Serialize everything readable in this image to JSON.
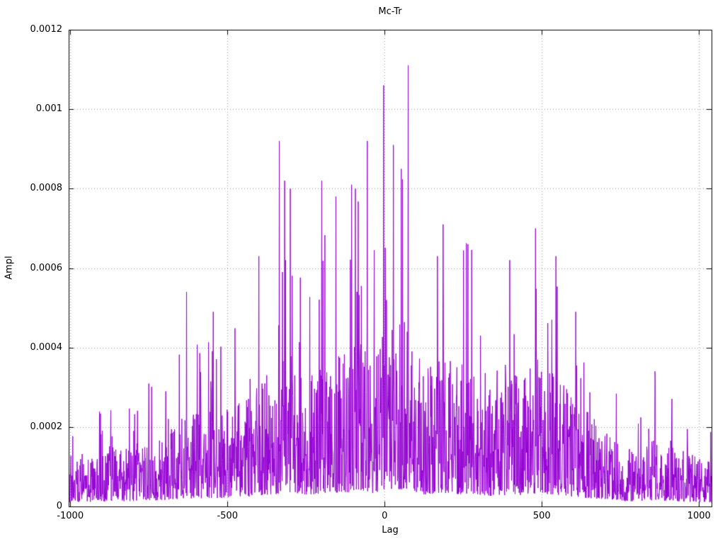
{
  "chart_data": {
    "type": "line",
    "title": "Mc-Tr",
    "xlabel": "Lag",
    "ylabel": "Ampl",
    "series_name": "Mc-Tr",
    "legend": "none",
    "grid": true,
    "line_color": "#9400d3",
    "grid_color": "#999999",
    "border_color": "#000000",
    "xlim": [
      -1005,
      1040
    ],
    "ylim": [
      0,
      0.0012
    ],
    "x_ticks": [
      -1000,
      -500,
      0,
      500,
      1000
    ],
    "x_tick_labels": [
      "-1000",
      "-500",
      "0",
      "500",
      "1000"
    ],
    "y_ticks": [
      0,
      0.0002,
      0.0004,
      0.0006,
      0.0008,
      0.001,
      0.0012
    ],
    "y_tick_labels": [
      "0",
      "0.0002",
      "0.0004",
      "0.0006",
      "0.0008",
      "0.001",
      "0.0012"
    ],
    "description": "Dense spiky noise-like amplitude versus lag; amplitude envelope rises from about 0.0002 at the edges (lag +/-1000) to roughly 0.0009 near lag 0, with isolated extreme spikes listed in notable_peaks.",
    "envelope": [
      [
        -1005,
        0.0002
      ],
      [
        -930,
        0.00022
      ],
      [
        -870,
        0.00027
      ],
      [
        -800,
        0.00026
      ],
      [
        -760,
        0.00032
      ],
      [
        -700,
        0.0003
      ],
      [
        -640,
        0.0004
      ],
      [
        -560,
        0.00042
      ],
      [
        -500,
        0.00043
      ],
      [
        -430,
        0.00048
      ],
      [
        -400,
        0.00056
      ],
      [
        -350,
        0.0006
      ],
      [
        -325,
        0.0007
      ],
      [
        -250,
        0.0006
      ],
      [
        -200,
        0.00064
      ],
      [
        -150,
        0.0007
      ],
      [
        -100,
        0.00072
      ],
      [
        -60,
        0.0008
      ],
      [
        -30,
        0.00062
      ],
      [
        0,
        0.00088
      ],
      [
        40,
        0.00082
      ],
      [
        75,
        0.0009
      ],
      [
        120,
        0.0006
      ],
      [
        180,
        0.00068
      ],
      [
        230,
        0.00062
      ],
      [
        270,
        0.00064
      ],
      [
        350,
        0.00052
      ],
      [
        400,
        0.0006
      ],
      [
        440,
        0.00056
      ],
      [
        480,
        0.00066
      ],
      [
        545,
        0.0006
      ],
      [
        600,
        0.00048
      ],
      [
        650,
        0.00042
      ],
      [
        700,
        0.00036
      ],
      [
        750,
        0.00027
      ],
      [
        800,
        0.00026
      ],
      [
        860,
        0.00032
      ],
      [
        920,
        0.00026
      ],
      [
        1000,
        0.00022
      ],
      [
        1040,
        0.0002
      ]
    ],
    "notable_peaks": [
      [
        -630,
        0.00054
      ],
      [
        -545,
        0.00049
      ],
      [
        -400,
        0.00063
      ],
      [
        -335,
        0.00092
      ],
      [
        -318,
        0.00082
      ],
      [
        -300,
        0.0008
      ],
      [
        -200,
        0.00082
      ],
      [
        -155,
        0.00078
      ],
      [
        -105,
        0.00081
      ],
      [
        -93,
        0.0008
      ],
      [
        -55,
        0.00092
      ],
      [
        -3,
        0.00106
      ],
      [
        28,
        0.00091
      ],
      [
        75,
        0.00111
      ],
      [
        168,
        0.00063
      ],
      [
        186,
        0.00071
      ],
      [
        265,
        0.00066
      ],
      [
        398,
        0.00062
      ],
      [
        480,
        0.0007
      ],
      [
        545,
        0.00063
      ],
      [
        608,
        0.00049
      ],
      [
        860,
        0.00034
      ]
    ]
  }
}
